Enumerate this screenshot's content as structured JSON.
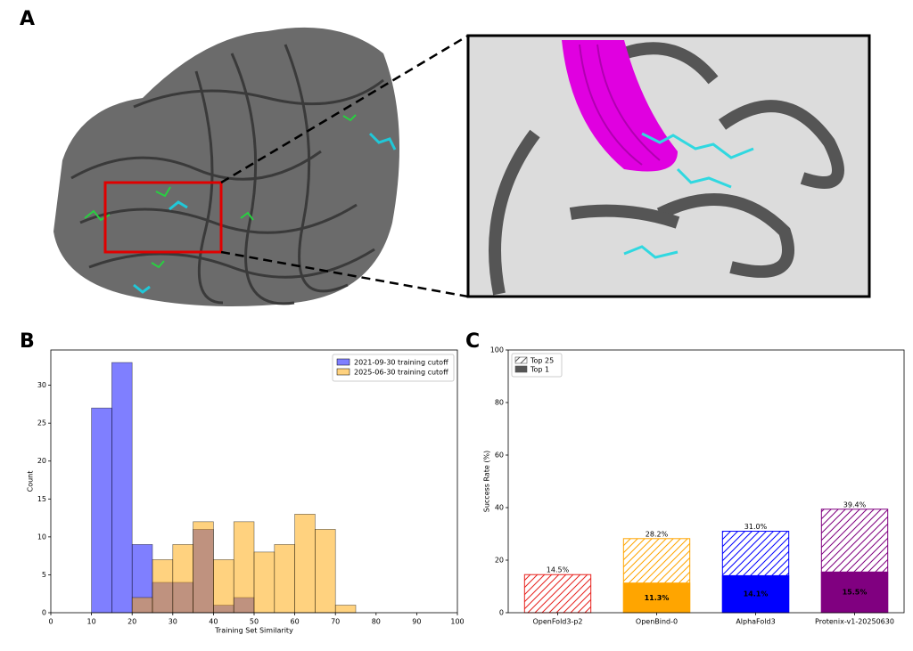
{
  "panel_labels": [
    "A",
    "B",
    "C"
  ],
  "chart_data": [
    {
      "type": "histogram",
      "xlabel": "Training Set Similarity",
      "ylabel": "Count",
      "bins": [
        10,
        15,
        20,
        25,
        30,
        35,
        40,
        45,
        50,
        55,
        60,
        65,
        70,
        75
      ],
      "series": [
        {
          "name": "2021-09-30 training cutoff",
          "color": "#0000ff",
          "values": [
            27,
            33,
            9,
            4,
            4,
            11,
            1,
            2,
            0,
            0,
            0,
            0,
            0
          ]
        },
        {
          "name": "2025-06-30 training cutoff",
          "color": "#ffa500",
          "values": [
            0,
            0,
            2,
            7,
            9,
            12,
            7,
            12,
            8,
            9,
            13,
            11,
            1
          ]
        }
      ],
      "alpha": 0.5,
      "xlim": [
        0,
        100
      ],
      "xticks": [
        0,
        10,
        20,
        30,
        40,
        50,
        60,
        70,
        80,
        90,
        100
      ],
      "ylim": [
        0,
        34.65
      ],
      "yticks": [
        0,
        5,
        10,
        15,
        20,
        25,
        30
      ],
      "legend": "upper right"
    },
    {
      "type": "bar",
      "ylabel": "Success Rate (%)",
      "categories": [
        "OpenFold3-p2",
        "OpenBind-0",
        "AlphaFold3",
        "Protenix-v1-20250630"
      ],
      "colors": [
        "#e8231f",
        "#ffa500",
        "#0000ff",
        "#800080"
      ],
      "series": [
        {
          "name": "Top 25",
          "color": "#555555",
          "hatch": true,
          "values": [
            14.5,
            28.2,
            31.0,
            39.4
          ],
          "value_labels": [
            "14.5%",
            "28.2%",
            "31.0%",
            "39.4%"
          ]
        },
        {
          "name": "Top 1",
          "color": "#555555",
          "hatch": false,
          "values": [
            null,
            11.3,
            14.1,
            15.5
          ],
          "value_labels": [
            null,
            "11.3%",
            "14.1%",
            "15.5%"
          ]
        }
      ],
      "ylim": [
        0,
        100
      ],
      "yticks": [
        0,
        20,
        40,
        60,
        80,
        100
      ],
      "legend": "upper left"
    }
  ]
}
